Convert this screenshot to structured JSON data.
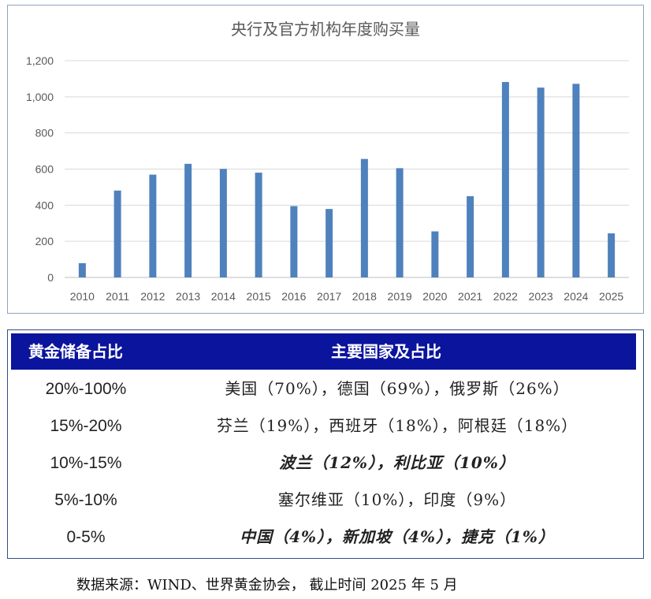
{
  "chart_data": {
    "type": "bar",
    "title": "央行及官方机构年度购买量",
    "categories": [
      "2010",
      "2011",
      "2012",
      "2013",
      "2014",
      "2015",
      "2016",
      "2017",
      "2018",
      "2019",
      "2020",
      "2021",
      "2022",
      "2023",
      "2024",
      "2025"
    ],
    "values": [
      79,
      481,
      569,
      629,
      601,
      580,
      395,
      379,
      656,
      605,
      255,
      450,
      1082,
      1051,
      1072,
      244
    ],
    "ylim": [
      0,
      1200
    ],
    "yticks": [
      0,
      200,
      400,
      600,
      800,
      1000,
      1200
    ],
    "ytick_labels": [
      "0",
      "200",
      "400",
      "600",
      "800",
      "1,000",
      "1,200"
    ],
    "grid": true,
    "bar_color": "#4f81bd",
    "xlabel": "",
    "ylabel": ""
  },
  "table": {
    "header_bg": "#0b149c",
    "headers": [
      "黄金储备占比",
      "主要国家及占比"
    ],
    "rows": [
      {
        "share": "20%-100%",
        "countries": "美国（70%），德国（69%），俄罗斯（26%）",
        "emphasis": false
      },
      {
        "share": "15%-20%",
        "countries": "芬兰（19%），西班牙（18%），阿根廷（18%）",
        "emphasis": false
      },
      {
        "share": "10%-15%",
        "countries": "波兰（12%），利比亚（10%）",
        "emphasis": true
      },
      {
        "share": "5%-10%",
        "countries": "塞尔维亚（10%），印度（9%）",
        "emphasis": false
      },
      {
        "share": "0-5%",
        "countries": "中国（4%），新加坡（4%），捷克（1%）",
        "emphasis": true
      }
    ]
  },
  "source": "数据来源：WIND、世界黄金协会， 截止时间 2025 年 5 月"
}
